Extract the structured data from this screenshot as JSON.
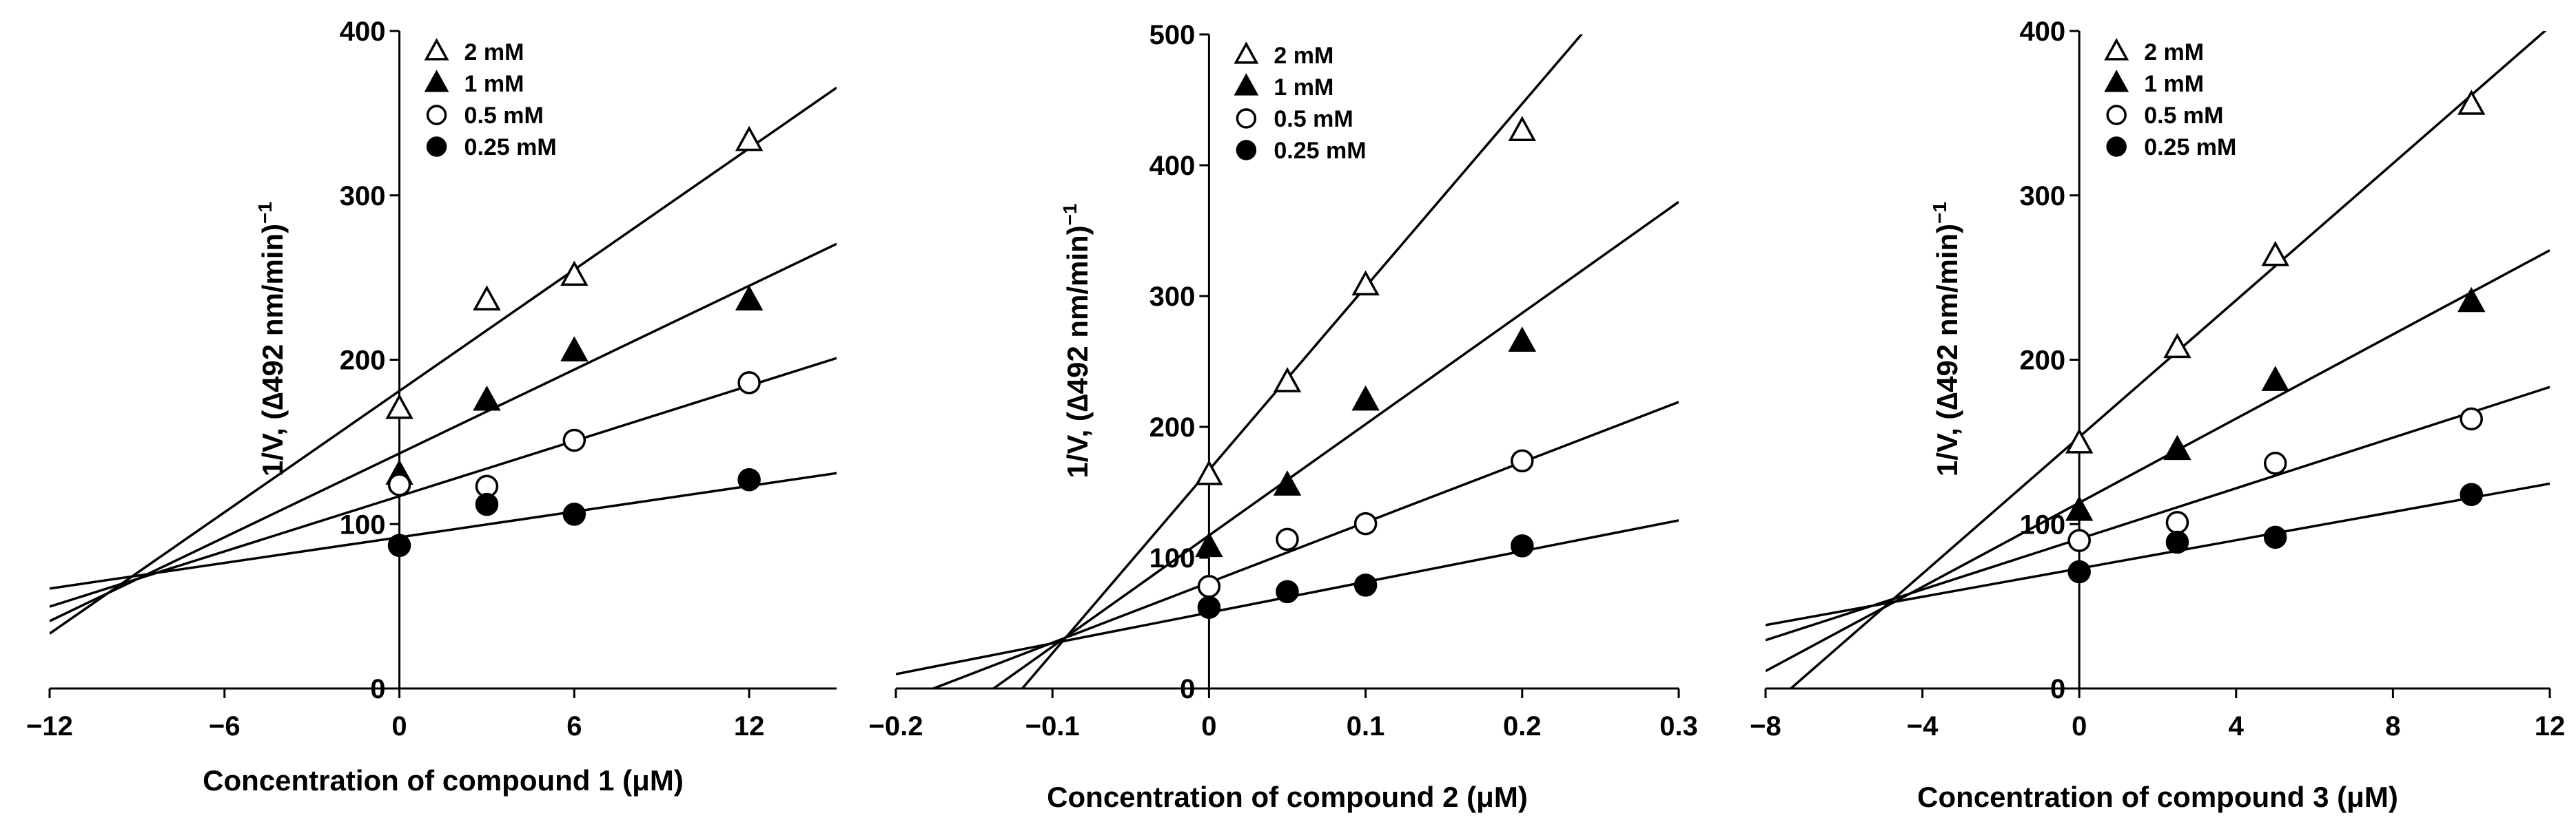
{
  "chart_data": [
    {
      "type": "scatter",
      "title": "",
      "xlabel": "Concentration of compound 1 (μM)",
      "ylabel": "1/V, (∆492 nm/min)",
      "ylabel_sup": "−1",
      "xlim": [
        -12,
        15
      ],
      "ylim": [
        0,
        400
      ],
      "xticks": [
        -12,
        -6,
        0,
        6,
        12
      ],
      "xtick_labels": [
        "−12",
        "−6",
        "0",
        "6",
        "12"
      ],
      "yticks": [
        0,
        100,
        200,
        300,
        400
      ],
      "ytick_labels": [
        "0",
        "100",
        "200",
        "300",
        "400"
      ],
      "legend_position": "top-left",
      "x": [
        0,
        3,
        6,
        12
      ],
      "series": [
        {
          "name": "2 mM",
          "marker": "triangle-open",
          "values": [
            170,
            236,
            251,
            333
          ],
          "fit": {
            "slope": 12.3,
            "intercept": 181
          }
        },
        {
          "name": "1 mM",
          "marker": "triangle-filled",
          "values": [
            130,
            175,
            205,
            236
          ],
          "fit": {
            "slope": 8.5,
            "intercept": 143
          }
        },
        {
          "name": "0.5 mM",
          "marker": "circle-open",
          "values": [
            124,
            123,
            151,
            186
          ],
          "fit": {
            "slope": 5.6,
            "intercept": 117
          }
        },
        {
          "name": "0.25 mM",
          "marker": "circle-filled",
          "values": [
            87,
            112,
            106,
            127
          ],
          "fit": {
            "slope": 2.6,
            "intercept": 92
          }
        }
      ]
    },
    {
      "type": "scatter",
      "title": "",
      "xlabel": "Concentration of compound 2 (μM)",
      "ylabel": "1/V, (∆492 nm/min)",
      "ylabel_sup": "−1",
      "xlim": [
        -0.2,
        0.3
      ],
      "ylim": [
        0,
        500
      ],
      "xticks": [
        -0.2,
        -0.1,
        0,
        0.1,
        0.2,
        0.3
      ],
      "xtick_labels": [
        "−0.2",
        "−0.1",
        "0",
        "0.1",
        "0.2",
        "0.3"
      ],
      "yticks": [
        0,
        100,
        200,
        300,
        400,
        500
      ],
      "ytick_labels": [
        "0",
        "100",
        "200",
        "300",
        "400",
        "500"
      ],
      "legend_position": "top-left",
      "x": [
        0,
        0.05,
        0.1,
        0.2
      ],
      "series": [
        {
          "name": "2 mM",
          "marker": "triangle-open",
          "values": [
            163,
            234,
            308,
            426
          ],
          "fit": {
            "slope": 1400,
            "intercept": 167
          }
        },
        {
          "name": "1 mM",
          "marker": "triangle-filled",
          "values": [
            108,
            155,
            220,
            265
          ],
          "fit": {
            "slope": 850,
            "intercept": 117
          }
        },
        {
          "name": "0.5 mM",
          "marker": "circle-open",
          "values": [
            78,
            114,
            126,
            174
          ],
          "fit": {
            "slope": 460,
            "intercept": 81
          }
        },
        {
          "name": "0.25 mM",
          "marker": "circle-filled",
          "values": [
            62,
            74,
            79,
            109
          ],
          "fit": {
            "slope": 235,
            "intercept": 58
          }
        }
      ]
    },
    {
      "type": "scatter",
      "title": "",
      "xlabel": "Concentration of compound 3 (μM)",
      "ylabel": "1/V, (∆492 nm/min)",
      "ylabel_sup": "−1",
      "xlim": [
        -8,
        12
      ],
      "ylim": [
        0,
        400
      ],
      "xticks": [
        -8,
        -4,
        0,
        4,
        8,
        12
      ],
      "xtick_labels": [
        "−8",
        "−4",
        "0",
        "4",
        "8",
        "12"
      ],
      "yticks": [
        0,
        100,
        200,
        300,
        400
      ],
      "ytick_labels": [
        "0",
        "100",
        "200",
        "300",
        "400"
      ],
      "legend_position": "top-left",
      "x": [
        0,
        2.5,
        5,
        10
      ],
      "series": [
        {
          "name": "2 mM",
          "marker": "triangle-open",
          "values": [
            149,
            207,
            263,
            355
          ],
          "fit": {
            "slope": 20.8,
            "intercept": 153
          }
        },
        {
          "name": "1 mM",
          "marker": "triangle-filled",
          "values": [
            108,
            145,
            187,
            235
          ],
          "fit": {
            "slope": 12.8,
            "intercept": 113
          }
        },
        {
          "name": "0.5 mM",
          "marker": "circle-open",
          "values": [
            90,
            101,
            137,
            164
          ],
          "fit": {
            "slope": 7.7,
            "intercept": 91
          }
        },
        {
          "name": "0.25 mM",
          "marker": "circle-filled",
          "values": [
            71,
            89,
            92,
            118
          ],
          "fit": {
            "slope": 4.3,
            "intercept": 73
          }
        }
      ]
    }
  ]
}
